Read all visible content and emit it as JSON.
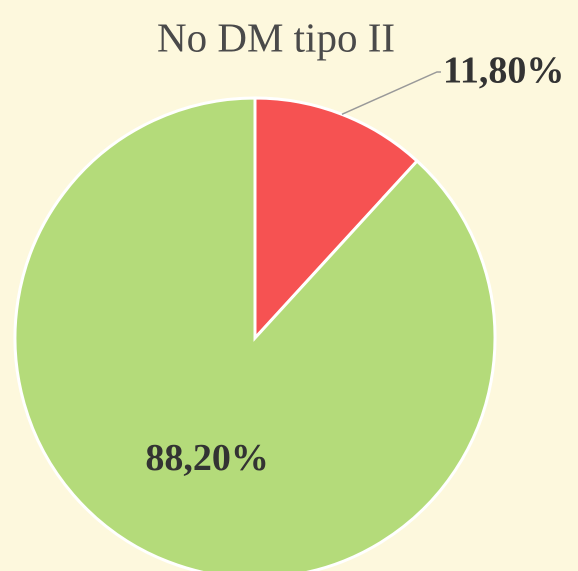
{
  "chart_data": {
    "type": "pie",
    "title": "No DM tipo II",
    "values": [
      11.8,
      88.2
    ],
    "value_labels": [
      "11,80%",
      "88,20%"
    ],
    "colors": [
      "#f65252",
      "#b4db7a"
    ]
  }
}
